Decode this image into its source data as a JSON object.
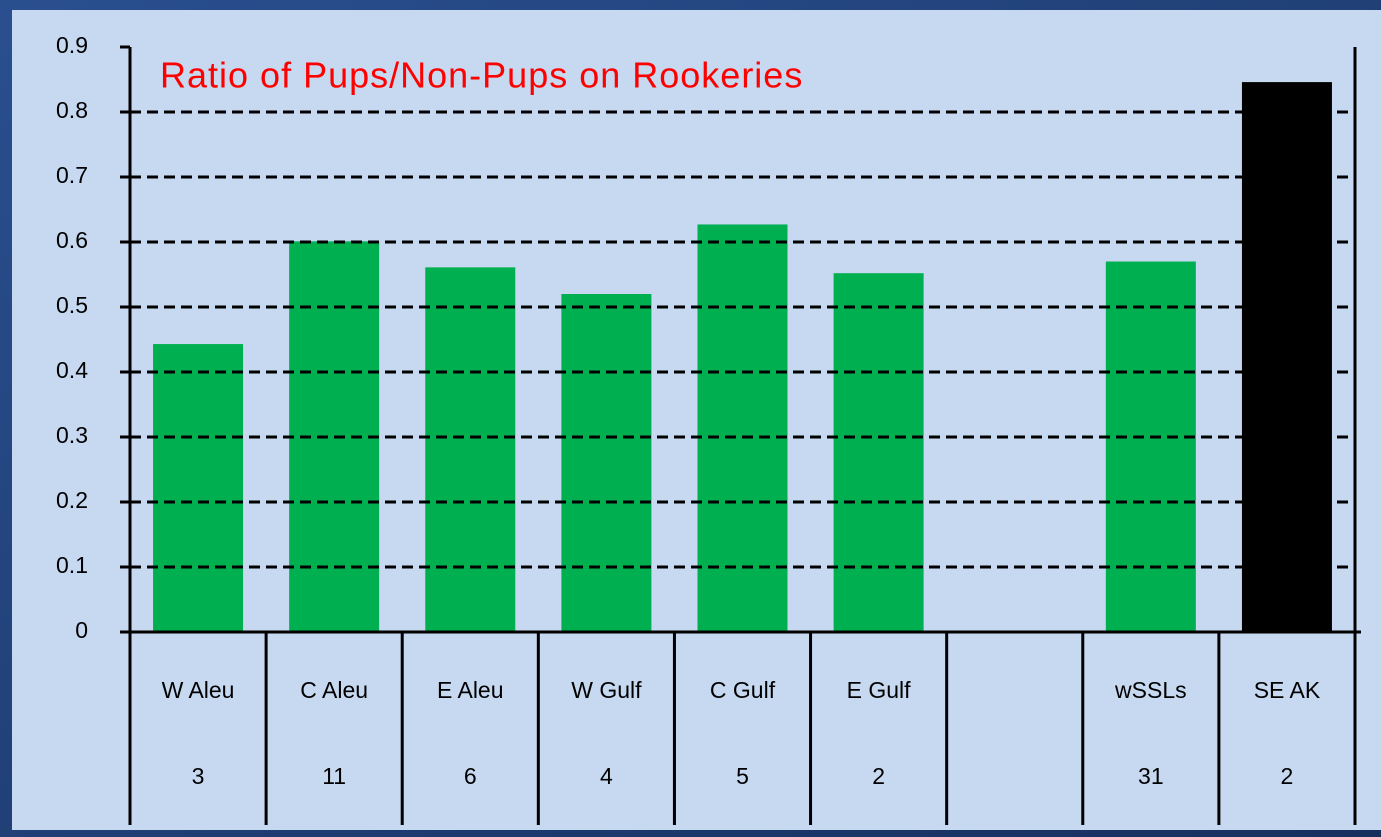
{
  "chart_data": {
    "type": "bar",
    "title": "Ratio of Pups/Non-Pups on Rookeries",
    "categories": [
      "W Aleu",
      "C Aleu",
      "E Aleu",
      "W Gulf",
      "C Gulf",
      "E Gulf",
      null,
      "wSSLs",
      "SE AK"
    ],
    "counts": [
      3,
      11,
      6,
      4,
      5,
      2,
      null,
      31,
      2
    ],
    "values": [
      0.443,
      0.601,
      0.561,
      0.52,
      0.627,
      0.552,
      null,
      0.57,
      0.846
    ],
    "colors": [
      "#00b050",
      "#00b050",
      "#00b050",
      "#00b050",
      "#00b050",
      "#00b050",
      null,
      "#00b050",
      "#000000"
    ],
    "ylim": [
      0,
      0.9
    ],
    "yticks": [
      0,
      0.1,
      0.2,
      0.3,
      0.4,
      0.5,
      0.6,
      0.7,
      0.8,
      0.9
    ],
    "grid": true
  }
}
